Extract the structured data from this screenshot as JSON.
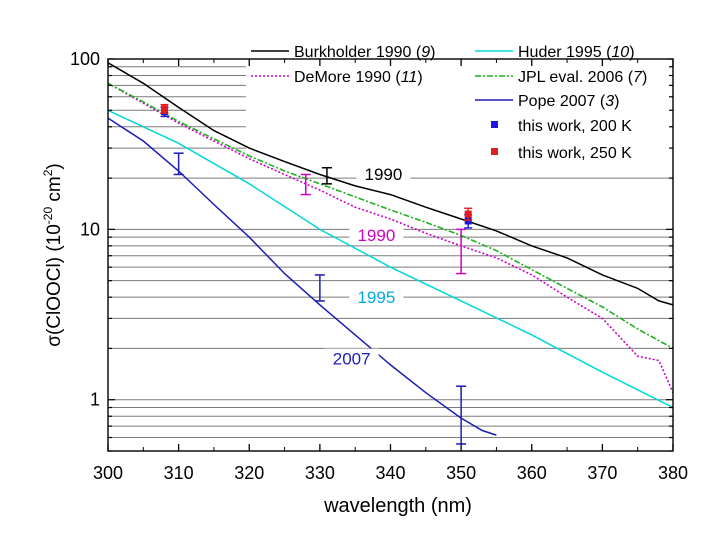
{
  "chart_data": {
    "type": "line",
    "title": "",
    "xlabel": "wavelength (nm)",
    "ylabel": {
      "main": "σ(ClOOCl) (10",
      "sup1": "-20",
      "mid": " cm",
      "sup2": "2",
      "end": ")"
    },
    "x_range": [
      300,
      380
    ],
    "y_range_log": [
      0.5,
      100
    ],
    "y_scale": "log",
    "x_ticks": [
      300,
      310,
      320,
      330,
      340,
      350,
      360,
      370,
      380
    ],
    "y_ticks": [
      {
        "value": 1,
        "label": "1"
      },
      {
        "value": 10,
        "label": "10"
      },
      {
        "value": 100,
        "label": "100"
      }
    ],
    "grid": "horizontal, at minor log decades",
    "series": [
      {
        "name": "Burkholder 1990",
        "ref": "9",
        "color": "#000000",
        "style": "solid",
        "points": [
          [
            300,
            95
          ],
          [
            305,
            72
          ],
          [
            310,
            52
          ],
          [
            315,
            38
          ],
          [
            320,
            30
          ],
          [
            325,
            25
          ],
          [
            330,
            21
          ],
          [
            335,
            18
          ],
          [
            340,
            16
          ],
          [
            345,
            13.5
          ],
          [
            350,
            11.5
          ],
          [
            355,
            9.8
          ],
          [
            360,
            8
          ],
          [
            365,
            6.8
          ],
          [
            370,
            5.4
          ],
          [
            375,
            4.5
          ],
          [
            378,
            3.8
          ],
          [
            380,
            3.6
          ]
        ]
      },
      {
        "name": "DeMore 1990",
        "ref": "11",
        "color": "#d000c8",
        "style": "dotted",
        "points": [
          [
            300,
            72
          ],
          [
            305,
            55
          ],
          [
            310,
            42
          ],
          [
            315,
            33
          ],
          [
            320,
            26
          ],
          [
            325,
            21
          ],
          [
            330,
            17
          ],
          [
            335,
            13.5
          ],
          [
            340,
            11.5
          ],
          [
            345,
            9.5
          ],
          [
            350,
            8
          ],
          [
            355,
            6.8
          ],
          [
            360,
            5.4
          ],
          [
            365,
            4
          ],
          [
            370,
            3
          ],
          [
            375,
            1.8
          ],
          [
            378,
            1.7
          ],
          [
            380,
            1.1
          ]
        ]
      },
      {
        "name": "Huder 1995",
        "ref": "10",
        "color": "#00d8d8",
        "style": "solid",
        "points": [
          [
            300,
            50
          ],
          [
            310,
            32
          ],
          [
            320,
            18.5
          ],
          [
            330,
            10
          ],
          [
            340,
            6
          ],
          [
            350,
            3.8
          ],
          [
            360,
            2.4
          ],
          [
            370,
            1.45
          ],
          [
            380,
            0.9
          ]
        ]
      },
      {
        "name": "JPL eval. 2006",
        "ref": "7",
        "color": "#22b022",
        "style": "dashdot",
        "points": [
          [
            300,
            72
          ],
          [
            305,
            56
          ],
          [
            310,
            43
          ],
          [
            315,
            34
          ],
          [
            320,
            27
          ],
          [
            325,
            22
          ],
          [
            330,
            18.5
          ],
          [
            335,
            15.5
          ],
          [
            340,
            13
          ],
          [
            345,
            11
          ],
          [
            350,
            9.2
          ],
          [
            355,
            7.5
          ],
          [
            360,
            5.8
          ],
          [
            365,
            4.5
          ],
          [
            370,
            3.5
          ],
          [
            375,
            2.6
          ],
          [
            380,
            2
          ]
        ]
      },
      {
        "name": "Pope 2007",
        "ref": "3",
        "color": "#1c1cb8",
        "style": "solid",
        "points": [
          [
            300,
            45
          ],
          [
            305,
            33
          ],
          [
            310,
            22
          ],
          [
            315,
            14
          ],
          [
            320,
            9
          ],
          [
            325,
            5.5
          ],
          [
            330,
            3.6
          ],
          [
            335,
            2.4
          ],
          [
            340,
            1.6
          ],
          [
            345,
            1.1
          ],
          [
            350,
            0.78
          ],
          [
            353,
            0.66
          ],
          [
            355,
            0.62
          ]
        ]
      }
    ],
    "this_work": [
      {
        "label": "this work, 200 K",
        "color": "#1818e0",
        "points": [
          [
            308,
            49
          ],
          [
            351,
            11.2
          ]
        ],
        "err": [
          [
            46,
            52
          ],
          [
            10.2,
            12.2
          ]
        ]
      },
      {
        "label": "this work, 250 K",
        "color": "#e02020",
        "points": [
          [
            308,
            51
          ],
          [
            351,
            12.3
          ]
        ],
        "err": [
          [
            48,
            54
          ],
          [
            11.3,
            13.3
          ]
        ]
      }
    ],
    "error_bars": [
      {
        "x": 310,
        "low": 21,
        "high": 28,
        "color": "#1c1cb8"
      },
      {
        "x": 330,
        "low": 3.8,
        "high": 5.4,
        "color": "#1c1cb8"
      },
      {
        "x": 350,
        "low": 0.55,
        "high": 1.2,
        "color": "#1c1cb8"
      },
      {
        "x": 328,
        "low": 16,
        "high": 21,
        "color": "#d000c8"
      },
      {
        "x": 331,
        "low": 18.5,
        "high": 23,
        "color": "#000000"
      },
      {
        "x": 350,
        "low": 5.5,
        "high": 10,
        "color": "#d000c8"
      }
    ],
    "annotations": [
      {
        "text": "1990",
        "x": 339,
        "y": 20,
        "color": "#000000"
      },
      {
        "text": "1990",
        "x": 338,
        "y": 8.8,
        "color": "#d000c8"
      },
      {
        "text": "1995",
        "x": 338,
        "y": 3.8,
        "color": "#00a8e0"
      },
      {
        "text": "2007",
        "x": 334.5,
        "y": 1.65,
        "color": "#1c1cb8"
      }
    ],
    "legend": [
      {
        "name": "Burkholder 1990",
        "ref": "9",
        "color": "#000000",
        "kind": "solid"
      },
      {
        "name": "DeMore 1990",
        "ref": "11",
        "color": "#d000c8",
        "kind": "dotted"
      },
      {
        "name": "Huder 1995",
        "ref": "10",
        "color": "#00d8d8",
        "kind": "solid"
      },
      {
        "name": "JPL eval. 2006",
        "ref": "7",
        "color": "#22b022",
        "kind": "dashdot"
      },
      {
        "name": "Pope 2007",
        "ref": "3",
        "color": "#1c1cb8",
        "kind": "solid"
      },
      {
        "name": "this work, 200 K",
        "ref": "",
        "color": "#1818e0",
        "kind": "square"
      },
      {
        "name": "this work, 250 K",
        "ref": "",
        "color": "#e02020",
        "kind": "square"
      }
    ],
    "legend_position": "top-right"
  }
}
